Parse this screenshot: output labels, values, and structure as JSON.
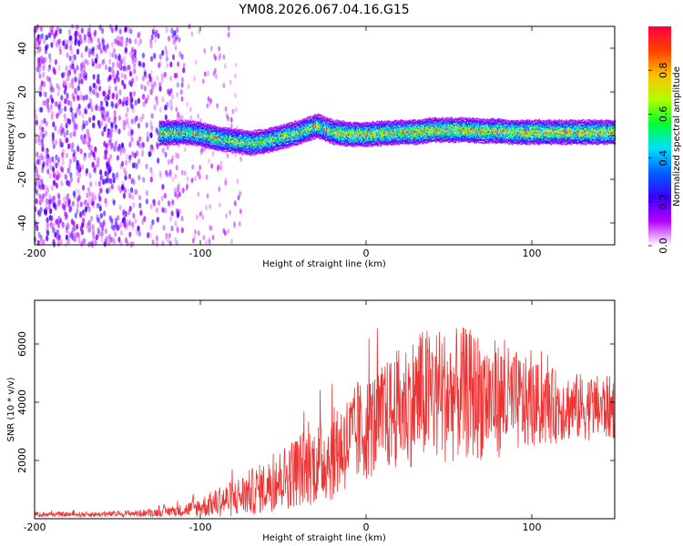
{
  "chart_data": [
    {
      "type": "heatmap",
      "title": "YM08.2026.067.04.16.G15",
      "xlabel": "Height of straight line (km)",
      "ylabel": "Frequency (Hz)",
      "xlim": [
        -200,
        150
      ],
      "ylim": [
        -50,
        50
      ],
      "xticks": [
        -200,
        -100,
        0,
        100
      ],
      "xtick_labels": [
        "-200",
        "-100",
        "0",
        "100"
      ],
      "yticks": [
        -40,
        -20,
        0,
        20,
        40
      ],
      "ytick_labels": [
        "-40",
        "-20",
        "0",
        "20",
        "40"
      ],
      "colorbar": {
        "label": "Normalized spectral amplitude",
        "range": [
          0,
          1
        ],
        "ticks": [
          0,
          0.2,
          0.4,
          0.6,
          0.8
        ],
        "tick_labels": [
          "0.0",
          "0.2",
          "0.4",
          "0.6",
          "0.8"
        ],
        "colormap": [
          "#ffffff",
          "#b400ff",
          "#3a00ff",
          "#0060ff",
          "#00e0ff",
          "#00ff30",
          "#b0ff00",
          "#ffc000",
          "#ff4000",
          "#ff0040"
        ]
      },
      "noise_region_x": [
        -200,
        -120
      ],
      "signal_track": {
        "x": [
          -125,
          -110,
          -100,
          -90,
          -80,
          -70,
          -60,
          -50,
          -40,
          -30,
          -20,
          -10,
          0,
          10,
          20,
          30,
          40,
          50,
          60,
          70,
          80,
          90,
          100,
          110,
          120,
          130,
          140,
          150
        ],
        "freq": [
          1.5,
          2,
          1,
          -1,
          -2,
          -3,
          -2,
          0,
          2,
          5,
          2,
          1,
          1,
          1.5,
          2,
          2,
          3,
          3,
          3,
          2.5,
          2.5,
          2,
          2,
          2,
          2,
          2,
          2,
          2
        ]
      }
    },
    {
      "type": "line",
      "xlabel": "Height of straight line (km)",
      "ylabel": "SNR (10 * v/v)",
      "xlim": [
        -200,
        150
      ],
      "ylim": [
        0,
        7500
      ],
      "xticks": [
        -200,
        -100,
        0,
        100
      ],
      "xtick_labels": [
        "-200",
        "-100",
        "0",
        "100"
      ],
      "yticks": [
        2000,
        4000,
        6000
      ],
      "ytick_labels": [
        "2000",
        "4000",
        "6000"
      ],
      "line_color": "#ee3333",
      "envelope": {
        "x": [
          -200,
          -160,
          -130,
          -110,
          -100,
          -90,
          -80,
          -70,
          -60,
          -50,
          -40,
          -30,
          -20,
          -10,
          0,
          10,
          20,
          30,
          40,
          50,
          60,
          70,
          80,
          90,
          100,
          120,
          150
        ],
        "mean": [
          150,
          150,
          200,
          300,
          400,
          550,
          700,
          900,
          1100,
          1400,
          1700,
          1900,
          2200,
          2700,
          3100,
          3400,
          3800,
          4100,
          4300,
          4200,
          4300,
          4200,
          4100,
          4000,
          3900,
          3850,
          3800
        ],
        "spread": [
          80,
          90,
          130,
          220,
          350,
          500,
          650,
          800,
          900,
          1100,
          1300,
          1400,
          1600,
          1700,
          1800,
          1900,
          2100,
          2300,
          2400,
          2300,
          2300,
          2200,
          2000,
          1800,
          1500,
          1200,
          1100
        ]
      }
    }
  ]
}
